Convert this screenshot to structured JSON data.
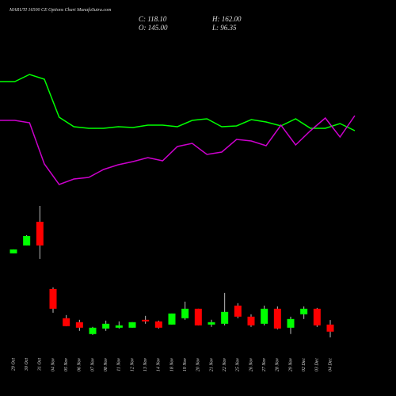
{
  "chart_data": {
    "type": "candlestick",
    "title": "MARUTI 16500 CE Options Chart MunafaSutra.com",
    "info": [
      "C: 118.10",
      "O: 145.00",
      "H: 162.00",
      "L: 96.35"
    ],
    "categories": [
      "29 Oct",
      "30 Oct",
      "31 Oct",
      "04 Nov",
      "05 Nov",
      "06 Nov",
      "07 Nov",
      "08 Nov",
      "11 Nov",
      "12 Nov",
      "13 Nov",
      "14 Nov",
      "18 Nov",
      "19 Nov",
      "20 Nov",
      "21 Nov",
      "22 Nov",
      "25 Nov",
      "26 Nov",
      "27 Nov",
      "28 Nov",
      "29 Nov",
      "02 Dec",
      "03 Dec",
      "04 Dec"
    ],
    "open": [
      415,
      445,
      535,
      280,
      169,
      154,
      109,
      130,
      133,
      133,
      163,
      157,
      145,
      169,
      205,
      145,
      148,
      217,
      175,
      148,
      205,
      133,
      184,
      205,
      145
    ],
    "high": [
      430,
      484,
      595,
      286,
      181,
      163,
      136,
      160,
      157,
      154,
      178,
      160,
      187,
      232,
      205,
      163,
      265,
      226,
      184,
      217,
      214,
      175,
      214,
      208,
      162
    ],
    "low": [
      415,
      445,
      394,
      190,
      139,
      121,
      106,
      121,
      130,
      133,
      148,
      130,
      145,
      163,
      142,
      136,
      142,
      169,
      136,
      142,
      127,
      109,
      166,
      136,
      96.35
    ],
    "close": [
      430,
      481,
      445,
      205,
      139,
      133,
      133,
      148,
      142,
      154,
      157,
      133,
      187,
      205,
      142,
      154,
      193,
      175,
      142,
      205,
      130,
      166,
      205,
      142,
      118.1
    ],
    "up_color": "#00ff00",
    "down_color": "#ff0000",
    "lines": [
      {
        "color": "#00ff00",
        "values": [
          397,
          397,
          406,
          400,
          352,
          340,
          338,
          338,
          340,
          339,
          342,
          342,
          340,
          348,
          350,
          340,
          341,
          349,
          346,
          341,
          350,
          338,
          338,
          344,
          335
        ]
      },
      {
        "color": "#cc00cc",
        "values": [
          348,
          348,
          345,
          293,
          267,
          274,
          276,
          286,
          292,
          296,
          301,
          297,
          315,
          319,
          305,
          308,
          324,
          322,
          316,
          342,
          317,
          335,
          351,
          327,
          354
        ]
      }
    ]
  }
}
